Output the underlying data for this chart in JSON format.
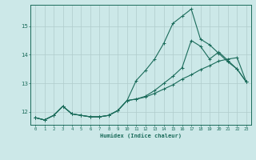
{
  "title": "",
  "xlabel": "Humidex (Indice chaleur)",
  "bg_color": "#cce8e8",
  "grid_color": "#b0cccc",
  "line_color": "#1a6b5a",
  "xlim": [
    -0.5,
    23.5
  ],
  "ylim": [
    11.55,
    15.75
  ],
  "xticks": [
    0,
    1,
    2,
    3,
    4,
    5,
    6,
    7,
    8,
    9,
    10,
    11,
    12,
    13,
    14,
    15,
    16,
    17,
    18,
    19,
    20,
    21,
    22,
    23
  ],
  "yticks": [
    12,
    13,
    14,
    15
  ],
  "line1_x": [
    0,
    1,
    2,
    3,
    4,
    5,
    6,
    7,
    8,
    9,
    10,
    11,
    12,
    13,
    14,
    15,
    16,
    17,
    18,
    19,
    20,
    21,
    22,
    23
  ],
  "line1_y": [
    11.8,
    11.72,
    11.88,
    12.2,
    11.93,
    11.88,
    11.83,
    11.83,
    11.88,
    12.05,
    12.4,
    13.1,
    13.45,
    13.85,
    14.4,
    15.1,
    15.35,
    15.6,
    14.55,
    14.35,
    14.05,
    13.75,
    13.5,
    13.05
  ],
  "line2_x": [
    0,
    1,
    2,
    3,
    4,
    5,
    6,
    7,
    8,
    9,
    10,
    11,
    12,
    13,
    14,
    15,
    16,
    17,
    18,
    19,
    20,
    21,
    22,
    23
  ],
  "line2_y": [
    11.8,
    11.72,
    11.88,
    12.2,
    11.93,
    11.88,
    11.83,
    11.83,
    11.88,
    12.05,
    12.4,
    12.45,
    12.55,
    12.75,
    13.0,
    13.25,
    13.55,
    14.5,
    14.3,
    13.85,
    14.1,
    13.8,
    13.5,
    13.05
  ],
  "line3_x": [
    0,
    1,
    2,
    3,
    4,
    5,
    6,
    7,
    8,
    9,
    10,
    11,
    12,
    13,
    14,
    15,
    16,
    17,
    18,
    19,
    20,
    21,
    22,
    23
  ],
  "line3_y": [
    11.8,
    11.72,
    11.88,
    12.2,
    11.93,
    11.88,
    11.83,
    11.83,
    11.88,
    12.05,
    12.4,
    12.45,
    12.52,
    12.65,
    12.8,
    12.95,
    13.15,
    13.3,
    13.48,
    13.62,
    13.78,
    13.85,
    13.9,
    13.05
  ]
}
